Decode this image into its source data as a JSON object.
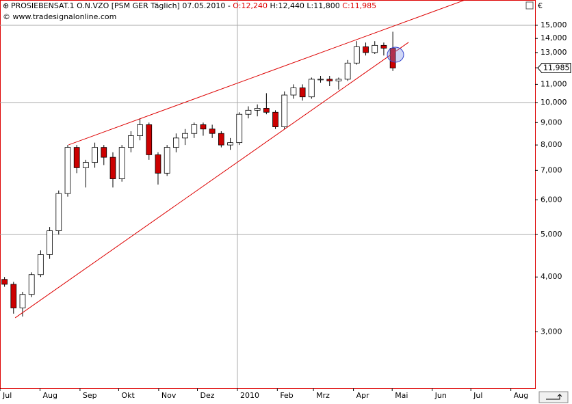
{
  "header": {
    "symbol": "PROSIEBENSAT.1 O.N.VZO [PSM GER  Täglich] 07.05.2010 -",
    "open": "O:12,240",
    "high_low": "H:12,440 L:11,800",
    "close": "C:11,985",
    "copyright": "© www.tradesignalonline.com",
    "currency": "€"
  },
  "chart_data": {
    "type": "candlestick",
    "log_scale": true,
    "x": [
      0.5,
      1.5,
      2.5,
      3.5,
      4.5,
      5.5,
      6.5,
      7.5,
      8.5,
      9.5,
      10.5,
      11.5,
      12.5,
      13.5,
      14.5,
      15.5,
      16.5,
      17.5,
      18.5,
      19.5,
      20.5,
      21.5,
      22.5,
      23.5,
      24.5,
      25.5,
      26.5,
      27.5,
      28.5,
      29.5,
      30.5,
      31.5,
      32.5,
      33.5,
      34.5,
      35.5,
      36.5,
      37.5,
      38.5,
      39.5,
      40.5,
      41.5,
      42.5,
      43.5
    ],
    "open": [
      3950,
      3850,
      3400,
      3650,
      4050,
      4500,
      5100,
      6200,
      7900,
      7100,
      7300,
      7900,
      7500,
      6700,
      7900,
      8400,
      8900,
      7600,
      6900,
      7900,
      8300,
      8500,
      8900,
      8700,
      8500,
      8000,
      8100,
      9400,
      9600,
      9700,
      9500,
      8800,
      10400,
      10800,
      10300,
      11300,
      11300,
      11200,
      11300,
      12300,
      13400,
      13000,
      13500,
      13300
    ],
    "high": [
      4000,
      3900,
      3700,
      4100,
      4600,
      5200,
      6300,
      8000,
      8000,
      7400,
      8100,
      8000,
      7700,
      8000,
      8600,
      9200,
      9000,
      7700,
      8000,
      8500,
      8700,
      9000,
      9000,
      8900,
      8600,
      8300,
      9500,
      9800,
      9900,
      10500,
      9600,
      10600,
      11000,
      11000,
      11400,
      11500,
      11500,
      11400,
      12500,
      13800,
      13700,
      13800,
      13700,
      14500
    ],
    "low": [
      3800,
      3300,
      3250,
      3600,
      4000,
      4400,
      5000,
      6100,
      6900,
      6400,
      7100,
      7200,
      6400,
      6600,
      7700,
      8200,
      7400,
      6500,
      6800,
      7700,
      8000,
      8300,
      8400,
      8300,
      7900,
      7800,
      8000,
      9200,
      9300,
      9400,
      8700,
      8700,
      10200,
      10100,
      10200,
      11100,
      10900,
      10700,
      11200,
      12200,
      12800,
      12900,
      12800,
      11800
    ],
    "close": [
      3850,
      3400,
      3650,
      4050,
      4500,
      5100,
      6200,
      7900,
      7100,
      7300,
      7900,
      7500,
      6700,
      7900,
      8400,
      8900,
      7600,
      6900,
      7900,
      8300,
      8500,
      8900,
      8700,
      8500,
      8000,
      8100,
      9400,
      9600,
      9700,
      9500,
      8800,
      10400,
      10800,
      10300,
      11300,
      11300,
      11200,
      11300,
      12300,
      13400,
      13000,
      13500,
      13300,
      11985
    ],
    "up_color": "#ffffff",
    "down_color": "#cc0000",
    "wick_color": "#000000",
    "xlim": [
      0,
      59.25
    ],
    "ylim": [
      2230,
      17130
    ],
    "xticks": [
      {
        "value": 0,
        "label": "Jul"
      },
      {
        "value": 4.43,
        "label": "Aug"
      },
      {
        "value": 8.86,
        "label": "Sep"
      },
      {
        "value": 13.14,
        "label": "Okt"
      },
      {
        "value": 17.57,
        "label": "Nov"
      },
      {
        "value": 21.86,
        "label": "Dez"
      },
      {
        "value": 26.29,
        "label": "2010"
      },
      {
        "value": 30.71,
        "label": "Feb"
      },
      {
        "value": 34.71,
        "label": "Mrz"
      },
      {
        "value": 39.14,
        "label": "Apr"
      },
      {
        "value": 43.43,
        "label": "Mai"
      },
      {
        "value": 47.86,
        "label": "Jun"
      },
      {
        "value": 52.14,
        "label": "Jul"
      },
      {
        "value": 56.57,
        "label": "Aug"
      }
    ],
    "xgrid": [
      6
    ],
    "yticks": [
      {
        "value": 3000,
        "label": "3,000"
      },
      {
        "value": 4000,
        "label": "4,000"
      },
      {
        "value": 5000,
        "label": "5,000"
      },
      {
        "value": 6000,
        "label": "6,000"
      },
      {
        "value": 7000,
        "label": "7,000"
      },
      {
        "value": 8000,
        "label": "8,000"
      },
      {
        "value": 9000,
        "label": "9,000"
      },
      {
        "value": 10000,
        "label": "10,000"
      },
      {
        "value": 11000,
        "label": "11,000"
      },
      {
        "value": 12000,
        "label": "12,000"
      },
      {
        "value": 13000,
        "label": "13,000"
      },
      {
        "value": 14000,
        "label": "14,000"
      },
      {
        "value": 15000,
        "label": "15,000"
      }
    ],
    "ygrid": [
      2,
      7,
      12
    ],
    "last_price": {
      "value": 11985,
      "label": "11,985"
    },
    "trendlines": [
      {
        "x": [
          7.59,
          51.5
        ],
        "y": [
          8005,
          17133
        ],
        "color": "#dd0000"
      },
      {
        "x": [
          1.68,
          45.24
        ],
        "y": [
          3228,
          13715
        ],
        "color": "#dd0000"
      }
    ]
  }
}
